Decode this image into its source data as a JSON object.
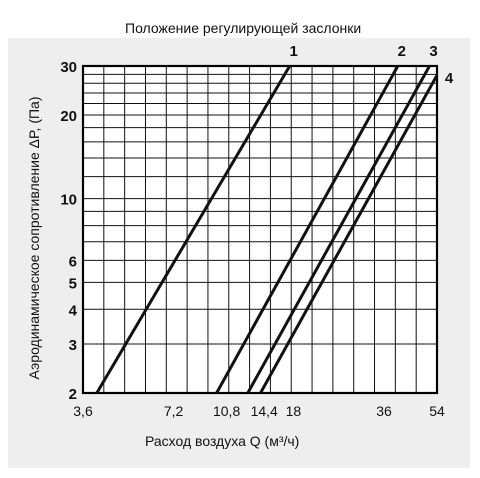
{
  "chart_data": {
    "type": "line",
    "title": "Положение регулирующей заслонки",
    "xlabel": "Расход воздуха Q (м³/ч)",
    "ylabel": "Аэродинамическое сопротивление ΔP, (Па)",
    "x_scale": "log",
    "y_scale": "log",
    "xlim": [
      3.6,
      54
    ],
    "ylim": [
      2,
      30
    ],
    "xticks": [
      3.6,
      7.2,
      10.8,
      14.4,
      18,
      36,
      54
    ],
    "xtick_labels": [
      "3,6",
      "7,2",
      "10,8",
      "14,4",
      "18",
      "36",
      "54"
    ],
    "yticks": [
      2,
      3,
      4,
      5,
      6,
      10,
      20,
      30
    ],
    "ytick_labels": [
      "2",
      "3",
      "4",
      "5",
      "6",
      "10",
      "20",
      "30"
    ],
    "grid": true,
    "series": [
      {
        "name": "1",
        "x": [
          4.0,
          17.5
        ],
        "y": [
          2,
          30
        ]
      },
      {
        "name": "2",
        "x": [
          10.0,
          40.0
        ],
        "y": [
          2,
          30
        ]
      },
      {
        "name": "3",
        "x": [
          12.7,
          51.0
        ],
        "y": [
          2,
          30
        ]
      },
      {
        "name": "4",
        "x": [
          14.0,
          54.0
        ],
        "y": [
          2,
          27.8
        ]
      }
    ]
  }
}
